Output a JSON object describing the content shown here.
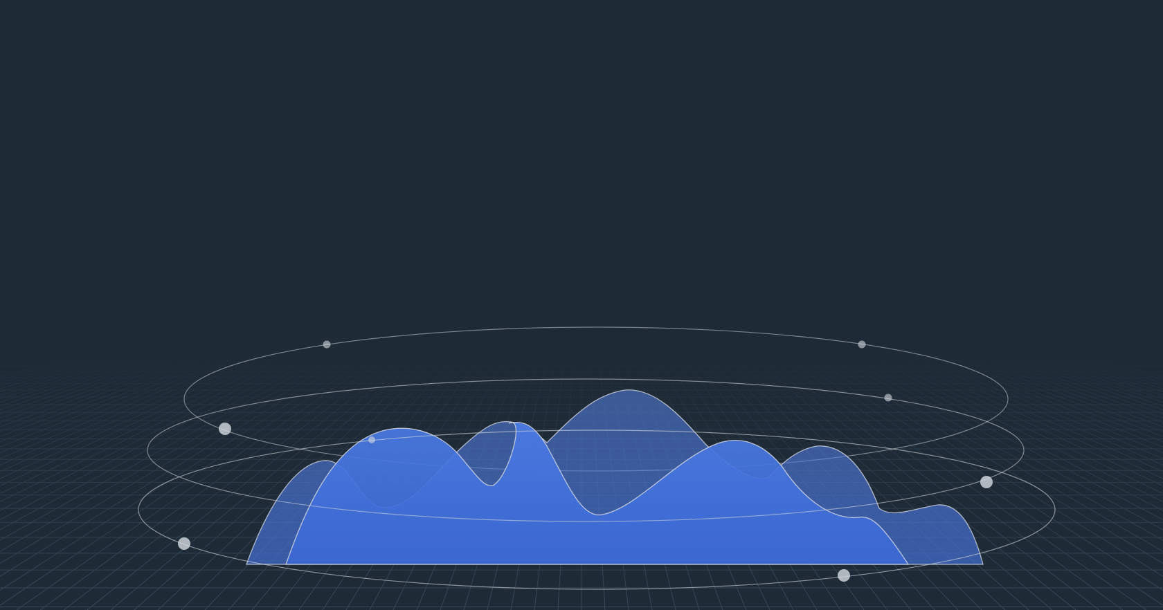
{
  "colors": {
    "background": "#1e2a36",
    "grid_line": "#3a4958",
    "ring_line": "#c9cfd6",
    "wave_back": "#4d7be0",
    "wave_front": "#3f6fd8",
    "wave_edge": "#d3d8e2",
    "dot": "#d6dbe1"
  },
  "rings": [
    {
      "name": "ring-top"
    },
    {
      "name": "ring-middle"
    },
    {
      "name": "ring-bottom"
    }
  ],
  "waves": [
    {
      "name": "wave-back"
    },
    {
      "name": "wave-front"
    }
  ]
}
